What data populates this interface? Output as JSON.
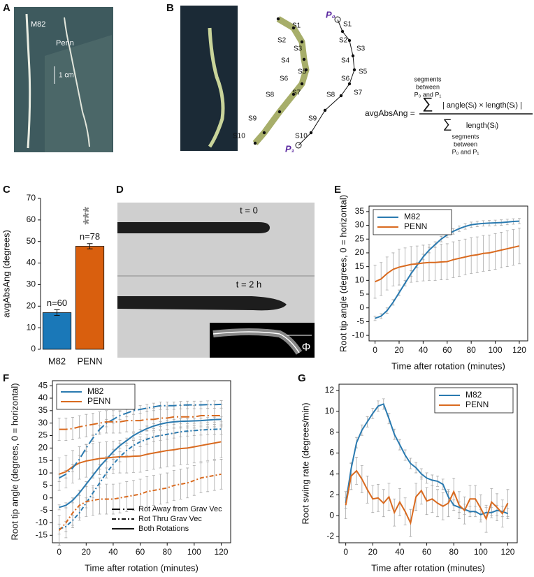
{
  "figure": {
    "A": {
      "panel_label": "A",
      "labels": [
        "M82",
        "Penn"
      ],
      "scale": "1 cm"
    },
    "B": {
      "panel_label": "B",
      "start_point": "P₀",
      "end_point": "P₁",
      "segments": [
        "S1",
        "S2",
        "S3",
        "S4",
        "S5",
        "S6",
        "S7",
        "S8",
        "S9",
        "S10"
      ],
      "formula": {
        "lhs": "avgAbsAng =",
        "sum": "∑",
        "sum_range": [
          "segments",
          "between",
          "P₀ and P₁"
        ],
        "numerator": "| angle(Sᵢ) × length(Sᵢ) |",
        "denominator": "length(Sᵢ)"
      }
    },
    "D": {
      "panel_label": "D",
      "labels": [
        "t = 0",
        "t = 2 h"
      ],
      "angle": "Φ"
    }
  },
  "chart_data": [
    {
      "type": "bar",
      "panel_label": "C",
      "ylabel": "avgAbsAng (degrees)",
      "categories": [
        "M82",
        "PENN"
      ],
      "values": [
        17,
        47.8
      ],
      "errors": [
        1.3,
        1.2
      ],
      "colors": [
        "#1a78b8",
        "#d95f0e"
      ],
      "annotations": [
        "n=60",
        "n=78"
      ],
      "significance": "***",
      "ylim": [
        0,
        70
      ],
      "yticks": [
        0,
        10,
        20,
        30,
        40,
        50,
        60,
        70
      ]
    },
    {
      "type": "line",
      "panel_label": "E",
      "xlabel": "Time after rotation (minutes)",
      "ylabel": "Root tip angle (degrees, 0 = horizontal)",
      "legend": "top-left",
      "error_color": "#a8a8a8",
      "x": [
        0,
        5,
        10,
        15,
        20,
        25,
        30,
        35,
        40,
        45,
        50,
        55,
        60,
        65,
        70,
        75,
        80,
        85,
        90,
        95,
        100,
        105,
        110,
        115,
        120
      ],
      "series": [
        {
          "name": "M82",
          "color": "#2a7ab0",
          "values": [
            -3.8,
            -3,
            -1,
            2,
            5.5,
            9,
            12.5,
            15.5,
            18.5,
            21,
            23,
            25,
            26.5,
            27.8,
            28.8,
            29.6,
            30.2,
            30.5,
            30.7,
            30.8,
            30.9,
            31,
            31.2,
            31.4,
            31.5
          ],
          "errors": [
            0.8,
            0.9,
            1,
            1,
            1,
            1,
            1,
            1,
            1,
            1,
            1,
            1,
            1,
            1,
            1,
            1,
            1,
            1,
            1,
            1,
            1,
            1,
            1,
            1,
            1
          ]
        },
        {
          "name": "PENN",
          "color": "#d96a1f",
          "values": [
            9.5,
            10.5,
            12.5,
            14,
            14.8,
            15.3,
            15.8,
            16,
            16.3,
            16.5,
            16.5,
            16.7,
            16.8,
            17.5,
            18,
            18.5,
            19,
            19.3,
            19.8,
            20,
            20.5,
            21,
            21.5,
            22,
            22.5
          ],
          "errors": [
            6,
            6,
            6,
            6,
            6.5,
            6.5,
            6.5,
            6.5,
            6.5,
            6.5,
            6.5,
            6.5,
            6.5,
            6.5,
            6.5,
            6.5,
            6.5,
            6.5,
            6.5,
            6.5,
            6.5,
            6.5,
            6.5,
            6.5,
            6.5
          ]
        }
      ],
      "xlim": [
        -5,
        127
      ],
      "xticks": [
        0,
        20,
        40,
        60,
        80,
        100,
        120
      ],
      "ylim": [
        -12,
        37
      ],
      "yticks": [
        -10,
        -5,
        0,
        5,
        10,
        15,
        20,
        25,
        30,
        35
      ]
    },
    {
      "type": "line",
      "panel_label": "F",
      "xlabel": "Time after rotation (minutes)",
      "ylabel": "Root tip angle (degrees, 0 = horizontal)",
      "legend": "top-left",
      "error_color": "#a8a8a8",
      "groups": [
        {
          "name": "M82",
          "color": "#2a7ab0"
        },
        {
          "name": "PENN",
          "color": "#d96a1f"
        }
      ],
      "styles": [
        {
          "name": "Rot Away from Grav Vec",
          "dash": "12 4 2 4"
        },
        {
          "name": "Rot Thru Grav Vec",
          "dash": "6 3 2 3"
        },
        {
          "name": "Both Rotations",
          "dash": "none"
        }
      ],
      "x": [
        0,
        5,
        10,
        15,
        20,
        25,
        30,
        35,
        40,
        45,
        50,
        55,
        60,
        65,
        70,
        75,
        80,
        85,
        90,
        95,
        100,
        105,
        110,
        115,
        120
      ],
      "series": [
        {
          "group": "M82",
          "style": "Both Rotations",
          "values": [
            -3.8,
            -3,
            -1,
            2,
            5.5,
            9,
            12.5,
            15.5,
            18.5,
            21,
            23,
            25,
            26.5,
            27.8,
            28.8,
            29.6,
            30.2,
            30.5,
            30.7,
            30.8,
            30.9,
            31,
            31.2,
            31.4,
            31.5
          ],
          "errors": [
            1,
            1,
            1,
            1,
            1,
            1,
            1,
            1,
            1,
            1,
            1,
            1,
            1,
            1,
            1,
            1,
            1,
            1,
            1,
            1,
            1,
            1,
            1,
            1,
            1
          ]
        },
        {
          "group": "PENN",
          "style": "Both Rotations",
          "values": [
            9.5,
            10.5,
            12.5,
            14,
            14.8,
            15.3,
            15.8,
            16,
            16.3,
            16.5,
            16.5,
            16.7,
            16.8,
            17.5,
            18,
            18.5,
            19,
            19.3,
            19.8,
            20,
            20.5,
            21,
            21.5,
            22,
            22.5
          ],
          "errors": [
            6.5,
            6.5,
            6.5,
            6.5,
            6.5,
            6.5,
            6.5,
            6.5,
            6.5,
            6.5,
            6.5,
            6.5,
            6.5,
            6.5,
            6.5,
            6.5,
            6.5,
            6.5,
            6.5,
            6.5,
            6.5,
            6.5,
            6.5,
            6.5,
            6.5
          ]
        },
        {
          "group": "M82",
          "style": "Rot Away from Grav Vec",
          "values": [
            8,
            9.5,
            12,
            15.5,
            20,
            24,
            27.5,
            30,
            31.5,
            33,
            34,
            35,
            35.5,
            36,
            36.5,
            37,
            37,
            37,
            37.2,
            37.3,
            37.3,
            37.3,
            37.4,
            37.4,
            37.5
          ],
          "errors": [
            1.5,
            1.5,
            1.5,
            1.5,
            1.5,
            1.5,
            1.5,
            1.5,
            1.5,
            1.5,
            1.5,
            1.5,
            1.5,
            1.5,
            1.5,
            1.5,
            1.5,
            1.5,
            1.5,
            1.5,
            1.5,
            1.5,
            1.5,
            1.5,
            1.5
          ]
        },
        {
          "group": "M82",
          "style": "Rot Thru Grav Vec",
          "values": [
            -12.5,
            -11.5,
            -9,
            -6,
            -2,
            2,
            6,
            10,
            13.5,
            16.5,
            19,
            21,
            22.5,
            23.5,
            24.5,
            25,
            25.5,
            26,
            26.5,
            26.8,
            27,
            27.2,
            27.4,
            27.5,
            27.6
          ],
          "errors": [
            2,
            2,
            2,
            2,
            2,
            2,
            2,
            2,
            2,
            2,
            2,
            2,
            2,
            2,
            2,
            2,
            2,
            2,
            2,
            2,
            2,
            2,
            2,
            2,
            2
          ]
        },
        {
          "group": "PENN",
          "style": "Rot Away from Grav Vec",
          "values": [
            27.5,
            27.5,
            27.8,
            28.5,
            29,
            29.5,
            30,
            30.5,
            30.5,
            30.5,
            31,
            31,
            31,
            31.5,
            31.5,
            32,
            32,
            32.5,
            32.5,
            32.5,
            32.5,
            33,
            33,
            33,
            33
          ],
          "errors": [
            4.5,
            4.5,
            4.5,
            4.5,
            4.5,
            4.5,
            4.5,
            4.5,
            4.5,
            4.5,
            4.5,
            4.5,
            4.5,
            4.5,
            4.5,
            4.5,
            4.5,
            4.5,
            4.5,
            4.5,
            4.5,
            4.5,
            4.5,
            4.5,
            4.5
          ]
        },
        {
          "group": "PENN",
          "style": "Rot Thru Grav Vec",
          "values": [
            -13,
            -10,
            -6,
            -3,
            -1.5,
            -1,
            -0.5,
            -0.5,
            -0.5,
            0,
            0.5,
            1,
            1.5,
            2.5,
            3,
            3.5,
            4,
            5,
            5.5,
            6,
            7,
            8,
            8.5,
            9,
            9.5
          ],
          "errors": [
            6,
            6,
            6,
            6,
            6,
            6,
            6,
            6,
            6,
            6,
            6,
            6,
            6,
            6,
            6,
            6,
            6,
            6,
            6,
            6,
            6,
            6,
            6,
            6,
            6
          ]
        }
      ],
      "xlim": [
        -5,
        127
      ],
      "xticks": [
        0,
        20,
        40,
        60,
        80,
        100,
        120
      ],
      "ylim": [
        -18,
        47
      ],
      "yticks": [
        -15,
        -10,
        -5,
        0,
        5,
        10,
        15,
        20,
        25,
        30,
        35,
        40,
        45
      ]
    },
    {
      "type": "line",
      "panel_label": "G",
      "xlabel": "Time after rotation (minutes)",
      "ylabel": "Root swing rate (degrees/min)",
      "legend": "top-right",
      "error_color": "#a8a8a8",
      "x": [
        0,
        4,
        8,
        12,
        16,
        20,
        24,
        28,
        32,
        36,
        40,
        44,
        48,
        52,
        56,
        60,
        64,
        68,
        72,
        76,
        80,
        84,
        88,
        92,
        96,
        100,
        104,
        108,
        112,
        116,
        120
      ],
      "series": [
        {
          "name": "M82",
          "color": "#2a7ab0",
          "values": [
            1.2,
            4.5,
            7,
            8.2,
            9,
            9.8,
            10.5,
            10.7,
            9.3,
            7.8,
            6.8,
            5.8,
            5,
            4.6,
            4,
            3.6,
            3.4,
            3.3,
            3,
            1.8,
            1,
            0.8,
            0.6,
            0.4,
            0.4,
            0.1,
            0.3,
            0.3,
            0.5,
            0.4,
            0.2
          ],
          "errors": [
            0.5,
            0.5,
            0.5,
            0.5,
            0.5,
            0.5,
            0.5,
            0.5,
            0.5,
            0.5,
            0.5,
            0.5,
            0.5,
            0.5,
            0.5,
            0.5,
            0.5,
            0.5,
            0.5,
            0.5,
            0.5,
            0.5,
            0.5,
            0.5,
            0.5,
            0.5,
            0.5,
            0.5,
            0.5,
            0.5,
            0.5
          ]
        },
        {
          "name": "PENN",
          "color": "#d96a1f",
          "values": [
            1,
            3.8,
            4.3,
            3.5,
            2.5,
            1.6,
            1.7,
            1.2,
            1.8,
            0.3,
            1.3,
            0.4,
            -0.7,
            1.8,
            2.4,
            1.4,
            1.6,
            1.2,
            0.9,
            1.2,
            2.3,
            1,
            0.5,
            1.6,
            1.6,
            0.7,
            -0.3,
            1.3,
            0.8,
            0.2,
            1.2
          ],
          "errors": [
            1.3,
            1.3,
            1.3,
            1.3,
            1.3,
            1.3,
            1.3,
            1.3,
            1.3,
            1.3,
            1.3,
            1.3,
            1.3,
            1.3,
            1.3,
            1.3,
            1.3,
            1.3,
            1.3,
            1.3,
            1.3,
            1.3,
            1.3,
            1.3,
            1.3,
            1.3,
            1.3,
            1.3,
            1.3,
            1.3,
            1.3
          ]
        }
      ],
      "xlim": [
        -5,
        127
      ],
      "xticks": [
        0,
        20,
        40,
        60,
        80,
        100,
        120
      ],
      "ylim": [
        -2.6,
        12.6
      ],
      "yticks": [
        -2,
        0,
        2,
        4,
        6,
        8,
        10,
        12
      ]
    }
  ]
}
